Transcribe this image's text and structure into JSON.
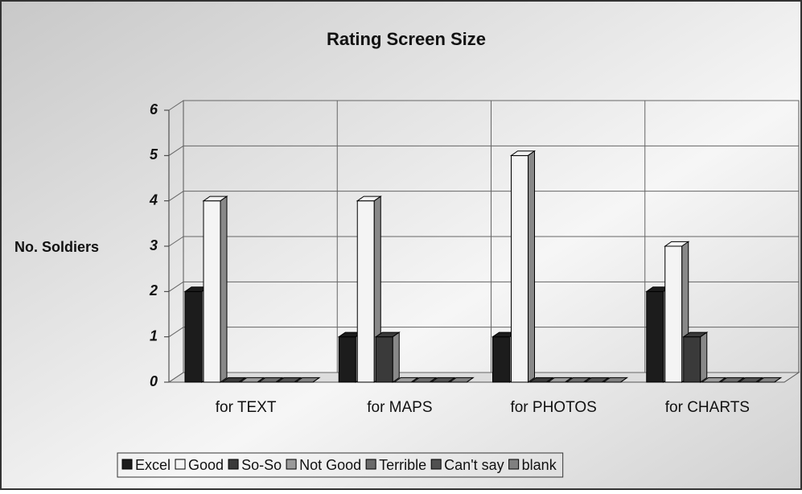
{
  "chart_data": {
    "type": "bar3d",
    "title": "Rating Screen Size",
    "y_label": "No. Soldiers",
    "categories": [
      "for TEXT",
      "for MAPS",
      "for PHOTOS",
      "for CHARTS"
    ],
    "series": [
      {
        "name": "Excel",
        "color": "#1c1c1c",
        "values": [
          2,
          1,
          1,
          2
        ]
      },
      {
        "name": "Good",
        "color": "#f4f4f4",
        "values": [
          4,
          4,
          5,
          3
        ]
      },
      {
        "name": "So-So",
        "color": "#3a3a3a",
        "values": [
          0,
          1,
          0,
          1
        ]
      },
      {
        "name": "Not Good",
        "color": "#9a9a9a",
        "values": [
          0,
          0,
          0,
          0
        ]
      },
      {
        "name": "Terrible",
        "color": "#6a6a6a",
        "values": [
          0,
          0,
          0,
          0
        ]
      },
      {
        "name": "Can't say",
        "color": "#505050",
        "values": [
          0,
          0,
          0,
          0
        ]
      },
      {
        "name": "blank",
        "color": "#808080",
        "values": [
          0,
          0,
          0,
          0
        ]
      }
    ],
    "ylim": [
      0,
      6
    ],
    "yticks": [
      0,
      1,
      2,
      3,
      4,
      5,
      6
    ],
    "grid": true,
    "legend": "bottom"
  }
}
